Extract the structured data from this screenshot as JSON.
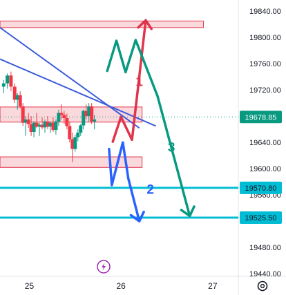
{
  "chart_data": {
    "type": "candlestick",
    "y_axis": {
      "ticks": [
        "19840.00",
        "19800.00",
        "19760.00",
        "19720.00",
        "19680.00",
        "19640.00",
        "19600.00",
        "19560.00",
        "19480.00",
        "19440.00"
      ],
      "tick_values": [
        19840,
        19800,
        19760,
        19720,
        19680,
        19640,
        19600,
        19560,
        19480,
        19440
      ],
      "range": [
        19436,
        19857
      ]
    },
    "x_axis": {
      "ticks": [
        "25",
        "26",
        "27"
      ],
      "tick_values": [
        25,
        26,
        27
      ],
      "range": [
        24.68,
        27.28
      ]
    },
    "current_price": {
      "label": "19678.85",
      "value": 19678.85,
      "color": "#089981"
    },
    "horizontal_levels": [
      {
        "label": "19570.80",
        "value": 19570.8,
        "color": "#00bcd4"
      },
      {
        "label": "19525.50",
        "value": 19525.5,
        "color": "#00bcd4"
      }
    ],
    "zones": [
      {
        "y_low": 19815,
        "y_high": 19825,
        "x_start": 24.68,
        "x_end": 26.9
      },
      {
        "y_low": 19671,
        "y_high": 19694,
        "x_start": 24.68,
        "x_end": 26.23
      },
      {
        "y_low": 19602,
        "y_high": 19618,
        "x_start": 24.68,
        "x_end": 26.23
      }
    ],
    "trendlines": [
      {
        "points": [
          [
            24.68,
            19815
          ],
          [
            26.2,
            19662
          ]
        ],
        "color": "#3b5bdb"
      },
      {
        "points": [
          [
            24.68,
            19767
          ],
          [
            26.38,
            19665
          ]
        ],
        "color": "#3b5bdb"
      }
    ],
    "candles": [
      [
        24.72,
        19725,
        19735,
        19715,
        19730
      ],
      [
        24.76,
        19730,
        19745,
        19722,
        19742
      ],
      [
        24.8,
        19742,
        19748,
        19718,
        19725
      ],
      [
        24.84,
        19725,
        19730,
        19700,
        19705
      ],
      [
        24.87,
        19705,
        19715,
        19690,
        19712
      ],
      [
        24.9,
        19712,
        19718,
        19692,
        19695
      ],
      [
        24.93,
        19695,
        19700,
        19665,
        19670
      ],
      [
        24.96,
        19670,
        19680,
        19650,
        19675
      ],
      [
        24.99,
        19675,
        19685,
        19662,
        19668
      ],
      [
        25.02,
        19668,
        19680,
        19650,
        19656
      ],
      [
        25.05,
        19656,
        19672,
        19648,
        19670
      ],
      [
        25.08,
        19670,
        19685,
        19662,
        19664
      ],
      [
        25.11,
        19664,
        19670,
        19650,
        19667
      ],
      [
        25.14,
        19667,
        19678,
        19660,
        19663
      ],
      [
        25.17,
        19663,
        19675,
        19655,
        19672
      ],
      [
        25.2,
        19672,
        19680,
        19660,
        19664
      ],
      [
        25.23,
        19664,
        19672,
        19655,
        19670
      ],
      [
        25.26,
        19670,
        19678,
        19656,
        19659
      ],
      [
        25.29,
        19659,
        19675,
        19652,
        19672
      ],
      [
        25.32,
        19672,
        19690,
        19665,
        19685
      ],
      [
        25.35,
        19685,
        19698,
        19675,
        19682
      ],
      [
        25.38,
        19682,
        19688,
        19668,
        19677
      ],
      [
        25.41,
        19677,
        19684,
        19660,
        19665
      ],
      [
        25.44,
        19665,
        19672,
        19640,
        19645
      ],
      [
        25.47,
        19645,
        19655,
        19610,
        19630
      ],
      [
        25.5,
        19630,
        19652,
        19626,
        19648
      ],
      [
        25.53,
        19648,
        19660,
        19642,
        19655
      ],
      [
        25.56,
        19655,
        19668,
        19650,
        19666
      ],
      [
        25.59,
        19666,
        19690,
        19660,
        19688
      ],
      [
        25.62,
        19688,
        19698,
        19675,
        19680
      ],
      [
        25.65,
        19680,
        19700,
        19672,
        19695
      ],
      [
        25.68,
        19695,
        19700,
        19668,
        19672
      ],
      [
        25.71,
        19672,
        19682,
        19660,
        19675
      ]
    ],
    "arrows": [
      {
        "name": "1",
        "color": "#e0344b",
        "path": [
          [
            25.91,
            19641
          ],
          [
            26.0,
            19679
          ],
          [
            26.12,
            19644
          ],
          [
            26.27,
            19826
          ]
        ],
        "label_value": "1",
        "label_pos": [
          26.2,
          19726
        ]
      },
      {
        "name": "2",
        "color": "#2962ff",
        "path": [
          [
            25.87,
            19630
          ],
          [
            25.9,
            19575
          ],
          [
            26.02,
            19640
          ],
          [
            26.08,
            19585
          ],
          [
            26.2,
            19520
          ]
        ],
        "label_value": "2",
        "label_pos": [
          26.32,
          19562
        ]
      },
      {
        "name": "3",
        "color": "#089981",
        "path": [
          [
            25.85,
            19749
          ],
          [
            25.95,
            19795
          ],
          [
            26.05,
            19747
          ],
          [
            26.16,
            19796
          ],
          [
            26.4,
            19710
          ],
          [
            26.75,
            19528
          ]
        ],
        "label_value": "3",
        "label_pos": [
          26.55,
          19626
        ]
      }
    ],
    "colors": {
      "bull": "#089981",
      "bear": "#f23645",
      "zone_fill": "#f7c5cb",
      "zone_stroke": "#e0344b",
      "grid_dot": "#089981"
    }
  },
  "icons": {
    "corner": "settings-icon",
    "marker": "lightning-icon"
  }
}
